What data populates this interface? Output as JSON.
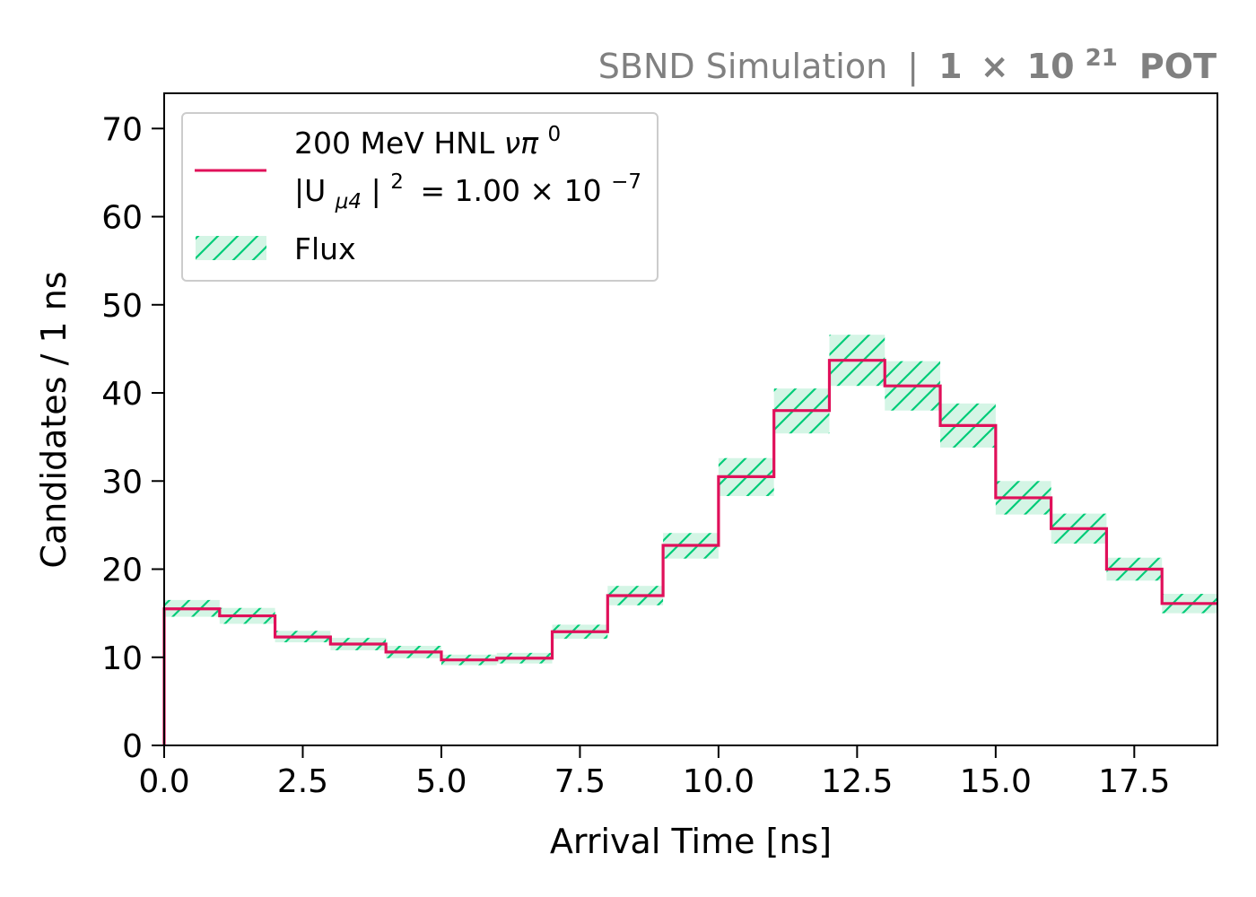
{
  "chart_data": {
    "type": "histogram",
    "title_parts": {
      "experiment": "SBND Simulation",
      "separator": "|",
      "pot_coeff": "1",
      "pot_times": "×",
      "pot_base": "10",
      "pot_exp": "21",
      "pot_unit": "POT"
    },
    "xlabel": "Arrival Time [ns]",
    "ylabel": "Candidates / 1 ns",
    "xlim": [
      0,
      19
    ],
    "ylim": [
      0,
      74
    ],
    "xticks": [
      "0.0",
      "2.5",
      "5.0",
      "7.5",
      "10.0",
      "12.5",
      "15.0",
      "17.5"
    ],
    "xtick_values": [
      0,
      2.5,
      5,
      7.5,
      10,
      12.5,
      15,
      17.5
    ],
    "yticks": [
      "0",
      "10",
      "20",
      "30",
      "40",
      "50",
      "60",
      "70"
    ],
    "ytick_values": [
      0,
      10,
      20,
      30,
      40,
      50,
      60,
      70
    ],
    "bin_edges": [
      0,
      1,
      2,
      3,
      4,
      5,
      6,
      7,
      8,
      9,
      10,
      11,
      12,
      13,
      14,
      15,
      16,
      17,
      18,
      19
    ],
    "series": [
      {
        "kind": "step",
        "label_lines": [
          "200 MeV HNL νπ⁰",
          "|Uμ4|² = 1.00 × 10⁻⁷"
        ],
        "color": "#e0105a",
        "values": [
          15.5,
          14.7,
          12.3,
          11.5,
          10.6,
          9.7,
          9.9,
          12.9,
          17.0,
          22.7,
          30.5,
          38.0,
          43.7,
          40.8,
          36.3,
          28.1,
          24.6,
          20.0,
          16.1
        ]
      },
      {
        "kind": "band",
        "label": "Flux",
        "color": "#00cc78",
        "fill": "#d4f5e5",
        "lower": [
          14.6,
          13.8,
          11.7,
          10.8,
          9.9,
          9.1,
          9.3,
          12.1,
          15.9,
          21.2,
          28.3,
          35.4,
          40.8,
          38.0,
          33.8,
          26.2,
          22.9,
          18.7,
          15.0
        ],
        "upper": [
          16.5,
          15.6,
          13.0,
          12.2,
          11.3,
          10.3,
          10.5,
          13.7,
          18.1,
          24.1,
          32.6,
          40.5,
          46.6,
          43.6,
          38.8,
          30.0,
          26.3,
          21.3,
          17.2
        ]
      }
    ],
    "legend": {
      "placement": "upper-left",
      "line_label": {
        "prefix": "200 MeV HNL ",
        "process": "νπ",
        "process_sup": "0",
        "coupling_open": "|U",
        "coupling_sub": "μ4",
        "coupling_close": "|",
        "coupling_sup": "2",
        "equals": "= 1.00 × 10",
        "exp": "−7"
      },
      "band_label": "Flux"
    },
    "grid": false
  }
}
